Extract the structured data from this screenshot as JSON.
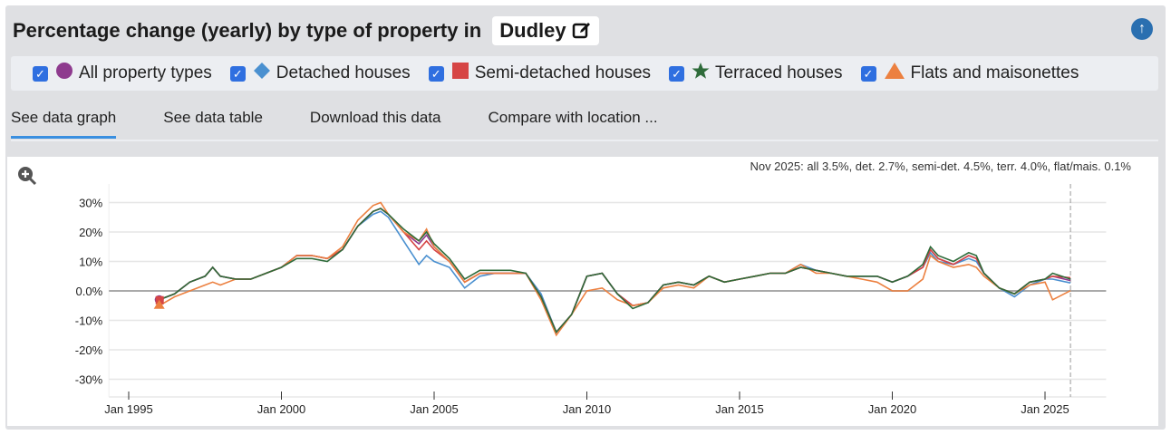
{
  "header": {
    "title": "Percentage change (yearly) by type of property in",
    "location": "Dudley",
    "edit_icon": "edit-icon",
    "top_icon": "arrow-up-circle-icon"
  },
  "legend": [
    {
      "label": "All property types",
      "marker": "circle",
      "color": "#8e3a8e",
      "checked": true
    },
    {
      "label": "Detached houses",
      "marker": "diamond",
      "color": "#4a90d0",
      "checked": true
    },
    {
      "label": "Semi-detached houses",
      "marker": "square",
      "color": "#d64545",
      "checked": true
    },
    {
      "label": "Terraced houses",
      "marker": "star",
      "color": "#2e6b3a",
      "checked": true
    },
    {
      "label": "Flats and maisonettes",
      "marker": "triangle",
      "color": "#ec8040",
      "checked": true
    }
  ],
  "tabs": [
    {
      "label": "See data graph",
      "active": true
    },
    {
      "label": "See data table"
    },
    {
      "label": "Download this data"
    },
    {
      "label": "Compare with location ..."
    }
  ],
  "chart_data": {
    "type": "line",
    "annotation": "Nov 2025: all 3.5%, det. 2.7%, semi-det. 4.5%, terr. 4.0%, flat/mais. 0.1%",
    "x_ticks": [
      "Jan 1995",
      "Jan 2000",
      "Jan 2005",
      "Jan 2010",
      "Jan 2015",
      "Jan 2020",
      "Jan 2025"
    ],
    "y_ticks": [
      "30%",
      "20%",
      "10%",
      "0.0%",
      "-10%",
      "-20%",
      "-30%"
    ],
    "ylim": [
      -35,
      32
    ],
    "xlim": [
      "1994-07",
      "2027-01"
    ],
    "grid": true,
    "x": [
      "1996-01",
      "1996-07",
      "1997-01",
      "1997-07",
      "1997-10",
      "1998-01",
      "1998-07",
      "1999-01",
      "1999-07",
      "2000-01",
      "2000-07",
      "2001-01",
      "2001-07",
      "2002-01",
      "2002-07",
      "2003-01",
      "2003-04",
      "2003-07",
      "2004-01",
      "2004-07",
      "2004-10",
      "2005-01",
      "2005-07",
      "2006-01",
      "2006-07",
      "2007-01",
      "2007-07",
      "2008-01",
      "2008-07",
      "2009-01",
      "2009-07",
      "2010-01",
      "2010-07",
      "2011-01",
      "2011-07",
      "2012-01",
      "2012-07",
      "2013-01",
      "2013-07",
      "2014-01",
      "2014-07",
      "2015-01",
      "2015-07",
      "2016-01",
      "2016-07",
      "2017-01",
      "2017-07",
      "2018-01",
      "2018-07",
      "2019-01",
      "2019-07",
      "2020-01",
      "2020-07",
      "2021-01",
      "2021-04",
      "2021-07",
      "2022-01",
      "2022-07",
      "2022-10",
      "2023-01",
      "2023-07",
      "2024-01",
      "2024-07",
      "2025-01",
      "2025-04",
      "2025-11"
    ],
    "series": [
      {
        "name": "All property types",
        "color": "#8e3a8e",
        "values": [
          -3,
          -1,
          3,
          5,
          8,
          5,
          4,
          4,
          6,
          8,
          12,
          12,
          11,
          14,
          22,
          27,
          28,
          26,
          20,
          16,
          19,
          15,
          10,
          3,
          6,
          6,
          6,
          6,
          -2,
          -14,
          -8,
          5,
          6,
          -1,
          -5,
          -4,
          2,
          3,
          2,
          5,
          3,
          4,
          5,
          6,
          6,
          8,
          7,
          6,
          5,
          5,
          5,
          3,
          5,
          8,
          14,
          11,
          9,
          12,
          11,
          6,
          1,
          -1,
          3,
          4,
          5,
          3.5
        ]
      },
      {
        "name": "Detached houses",
        "color": "#4a90d0",
        "values": [
          -3,
          -1,
          3,
          5,
          8,
          5,
          4,
          4,
          6,
          8,
          12,
          12,
          11,
          14,
          22,
          26,
          27,
          25,
          17,
          9,
          12,
          10,
          8,
          1,
          5,
          6,
          6,
          6,
          -1,
          -14,
          -8,
          5,
          6,
          -1,
          -5,
          -4,
          2,
          3,
          2,
          5,
          3,
          4,
          5,
          6,
          6,
          9,
          7,
          6,
          5,
          5,
          5,
          3,
          5,
          8,
          13,
          10,
          9,
          11,
          10,
          6,
          1,
          -2,
          2,
          4,
          4,
          2.7
        ]
      },
      {
        "name": "Semi-detached houses",
        "color": "#d64545",
        "values": [
          -3,
          -1,
          3,
          5,
          8,
          5,
          4,
          4,
          6,
          8,
          12,
          12,
          11,
          14,
          22,
          27,
          28,
          26,
          20,
          14,
          17,
          14,
          10,
          3,
          6,
          6,
          6,
          6,
          -2,
          -14,
          -8,
          5,
          6,
          -1,
          -5,
          -4,
          2,
          3,
          2,
          5,
          3,
          4,
          5,
          6,
          6,
          8,
          7,
          6,
          5,
          5,
          5,
          3,
          5,
          8,
          14,
          11,
          9,
          12,
          11,
          6,
          1,
          -1,
          3,
          4,
          5,
          4.5
        ]
      },
      {
        "name": "Terraced houses",
        "color": "#2e6b3a",
        "values": [
          -3,
          -1,
          3,
          5,
          8,
          5,
          4,
          4,
          6,
          8,
          11,
          11,
          10,
          14,
          22,
          27,
          28,
          26,
          21,
          17,
          20,
          16,
          11,
          4,
          7,
          7,
          7,
          6,
          -2,
          -14,
          -8,
          5,
          6,
          -1,
          -6,
          -4,
          2,
          3,
          2,
          5,
          3,
          4,
          5,
          6,
          6,
          8,
          7,
          6,
          5,
          5,
          5,
          3,
          5,
          9,
          15,
          12,
          10,
          13,
          12,
          6,
          1,
          -1,
          3,
          4,
          6,
          4.0
        ]
      },
      {
        "name": "Flats and maisonettes",
        "color": "#ec8040",
        "values": [
          -5,
          -2,
          0,
          2,
          3,
          2,
          4,
          4,
          6,
          8,
          12,
          12,
          11,
          15,
          24,
          29,
          30,
          26,
          20,
          17,
          21,
          15,
          10,
          3,
          6,
          6,
          6,
          6,
          -3,
          -15,
          -8,
          0,
          1,
          -3,
          -5,
          -4,
          1,
          2,
          1,
          5,
          3,
          4,
          5,
          6,
          6,
          9,
          6,
          6,
          5,
          4,
          3,
          0,
          0,
          4,
          12,
          10,
          8,
          9,
          8,
          5,
          1,
          -1,
          2,
          3,
          -3,
          0.1
        ]
      }
    ]
  }
}
